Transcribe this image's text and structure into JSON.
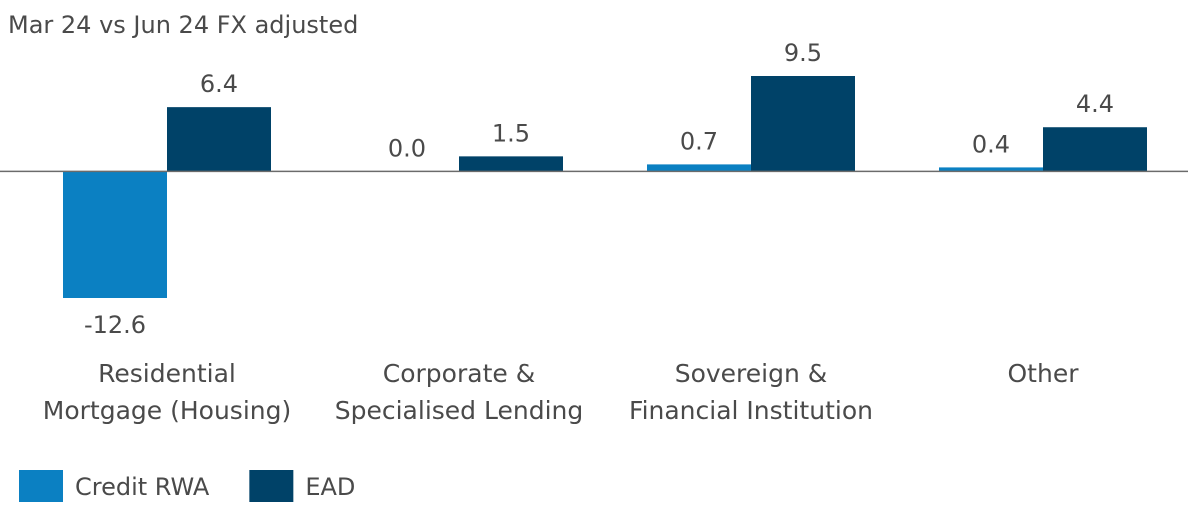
{
  "chart_data": {
    "type": "bar",
    "title": "Mar 24 vs Jun 24 FX adjusted",
    "categories": [
      [
        "Residential",
        "Mortgage (Housing)"
      ],
      [
        "Corporate &",
        "Specialised Lending"
      ],
      [
        "Sovereign &",
        "Financial Institution"
      ],
      [
        "Other"
      ]
    ],
    "series": [
      {
        "name": "Credit RWA",
        "color": "#0b80c2",
        "values": [
          -12.6,
          0,
          0.7,
          0.4
        ],
        "value_labels": [
          "-12.6",
          "0.0",
          "0.7",
          "0.4"
        ]
      },
      {
        "name": "EAD",
        "color": "#004268",
        "values": [
          6.4,
          1.5,
          9.5,
          4.4
        ],
        "value_labels": [
          "6.4",
          "1.5",
          "9.5",
          "4.4"
        ]
      }
    ],
    "legend": "bottom-left"
  }
}
